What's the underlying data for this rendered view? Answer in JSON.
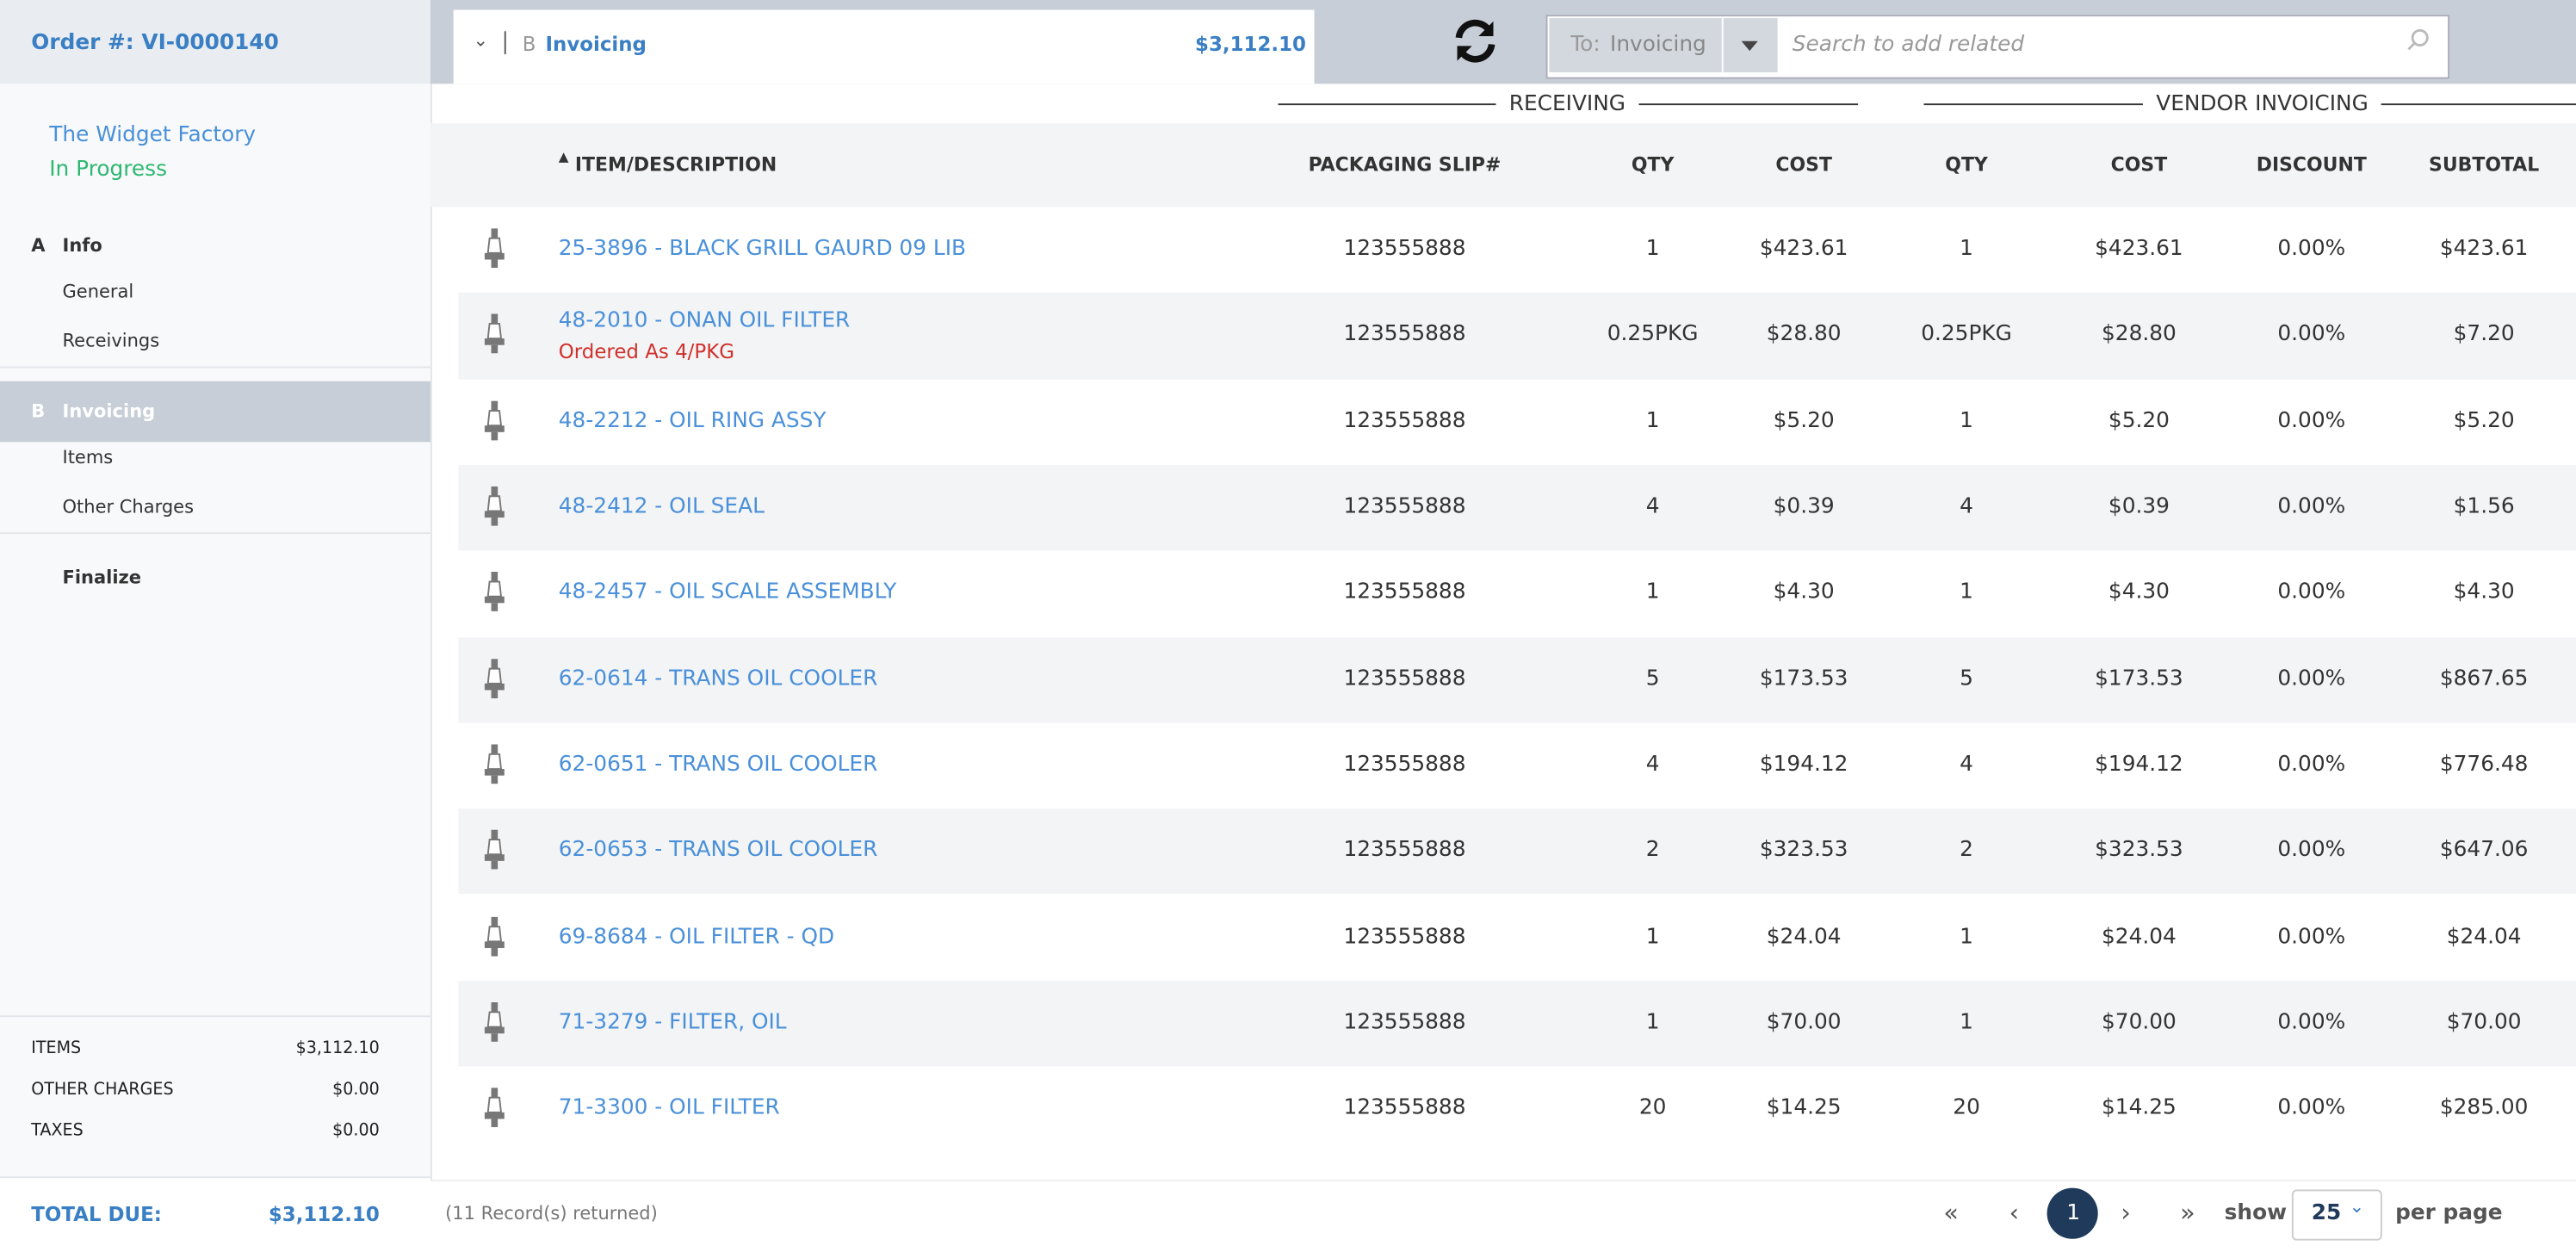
{
  "header": {
    "order_number": "Order #: VI-0000140",
    "section_letter": "B",
    "section": "Invoicing",
    "section_total": "$3,112.10",
    "to_label": "To:",
    "to_value": "Invoicing",
    "search_placeholder": "Search to add related"
  },
  "sidebar": {
    "company": "The Widget Factory",
    "status": "In Progress",
    "nav": [
      {
        "letter": "A",
        "label": "Info",
        "items": [
          "General",
          "Receivings"
        ]
      },
      {
        "letter": "B",
        "label": "Invoicing",
        "items": [
          "Items",
          "Other Charges"
        ]
      },
      {
        "label": "Finalize"
      }
    ],
    "summary": [
      [
        "ITEMS",
        "$3,112.10"
      ],
      [
        "OTHER CHARGES",
        "$0.00"
      ],
      [
        "TAXES",
        "$0.00"
      ]
    ],
    "total_due": [
      "TOTAL DUE:",
      "$3,112.10"
    ]
  },
  "table": {
    "groups": [
      "RECEIVING",
      "VENDOR INVOICING"
    ],
    "columns": [
      "ITEM/DESCRIPTION",
      "PACKAGING SLIP#",
      "QTY",
      "COST",
      "QTY",
      "COST",
      "DISCOUNT",
      "SUBTOTAL"
    ],
    "rows": [
      [
        "25-3896 - BLACK GRILL GAURD 09 LIB",
        "123555888",
        "1",
        "$423.61",
        "1",
        "$423.61",
        "0.00%",
        "$423.61"
      ],
      [
        "48-2010 - ONAN OIL FILTER",
        "123555888",
        "0.25PKG",
        "$28.80",
        "0.25PKG",
        "$28.80",
        "0.00%",
        "$7.20"
      ],
      [
        "48-2212 - OIL RING ASSY",
        "123555888",
        "1",
        "$5.20",
        "1",
        "$5.20",
        "0.00%",
        "$5.20"
      ],
      [
        "48-2412 - OIL SEAL",
        "123555888",
        "4",
        "$0.39",
        "4",
        "$0.39",
        "0.00%",
        "$1.56"
      ],
      [
        "48-2457 - OIL SCALE ASSEMBLY",
        "123555888",
        "1",
        "$4.30",
        "1",
        "$4.30",
        "0.00%",
        "$4.30"
      ],
      [
        "62-0614 - TRANS OIL COOLER",
        "123555888",
        "5",
        "$173.53",
        "5",
        "$173.53",
        "0.00%",
        "$867.65"
      ],
      [
        "62-0651 - TRANS OIL COOLER",
        "123555888",
        "4",
        "$194.12",
        "4",
        "$194.12",
        "0.00%",
        "$776.48"
      ],
      [
        "62-0653 - TRANS OIL COOLER",
        "123555888",
        "2",
        "$323.53",
        "2",
        "$323.53",
        "0.00%",
        "$647.06"
      ],
      [
        "69-8684 - OIL FILTER - QD",
        "123555888",
        "1",
        "$24.04",
        "1",
        "$24.04",
        "0.00%",
        "$24.04"
      ],
      [
        "71-3279 - FILTER, OIL",
        "123555888",
        "1",
        "$70.00",
        "1",
        "$70.00",
        "0.00%",
        "$70.00"
      ],
      [
        "71-3300 - OIL FILTER",
        "123555888",
        "20",
        "$14.25",
        "20",
        "$14.25",
        "0.00%",
        "$285.00"
      ]
    ],
    "notes": {
      "1": "Ordered As 4/PKG"
    }
  },
  "footer": {
    "records": "(11 Record(s) returned)",
    "page": "1",
    "show": "show",
    "per_page_value": "25",
    "per_page": "per page"
  }
}
